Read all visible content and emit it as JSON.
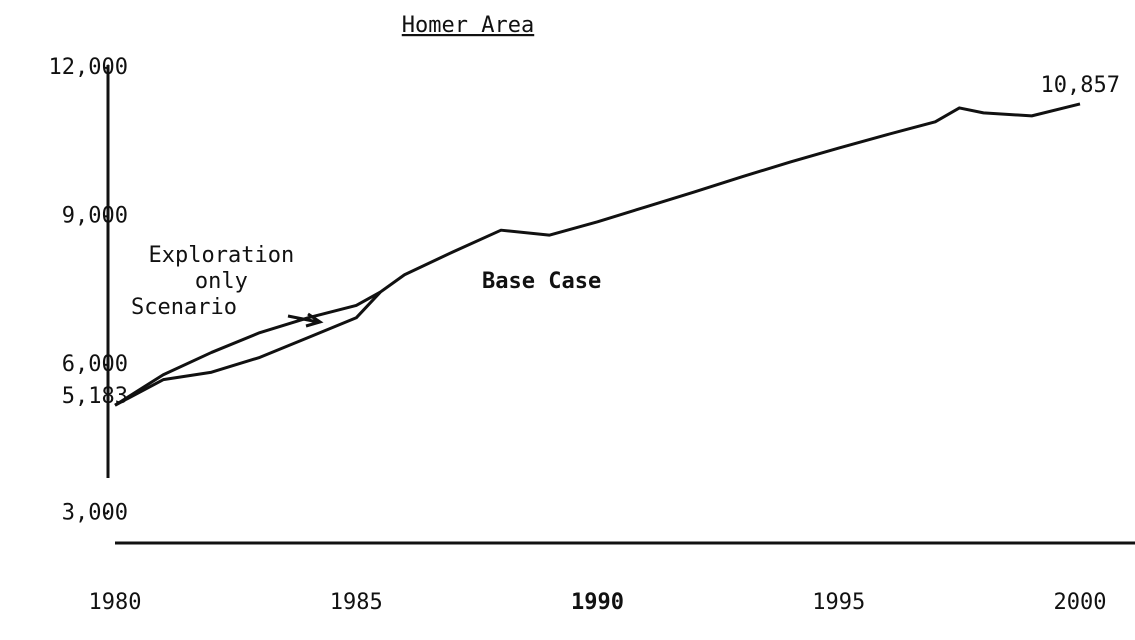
{
  "chart_data": {
    "type": "line",
    "title": "Homer Area",
    "x": [
      1980,
      1981,
      1982,
      1983,
      1984,
      1985,
      1985.5,
      1986,
      1987,
      1988,
      1989,
      1990,
      1991,
      1992,
      1993,
      1994,
      1995,
      1996,
      1997,
      1997.5,
      1998,
      1999,
      2000
    ],
    "series": [
      {
        "name": "Base Case",
        "color": "#111111",
        "values": [
          5183,
          5700,
          5850,
          6150,
          6550,
          6950,
          7470,
          7820,
          8280,
          8720,
          8620,
          8890,
          9190,
          9490,
          9800,
          10100,
          10380,
          10650,
          10910,
          11190,
          11090,
          11030,
          11270
        ]
      },
      {
        "name": "Exploration only Scenario",
        "color": "#111111",
        "values": [
          5183,
          5800,
          6250,
          6650,
          6950,
          7200,
          7470,
          null,
          null,
          null,
          null,
          null,
          null,
          null,
          null,
          null,
          null,
          null,
          null,
          null,
          null,
          null,
          null
        ]
      }
    ],
    "xlim": [
      1980,
      2000
    ],
    "xticks": [
      1980,
      1985,
      1990,
      1995,
      2000
    ],
    "ylim": [
      2400,
      12300
    ],
    "yticks": [
      {
        "value": 3000,
        "label": "3,000"
      },
      {
        "value": 6000,
        "label": "6,000"
      },
      {
        "value": 9000,
        "label": "9,000"
      },
      {
        "value": 12000,
        "label": "12,000"
      }
    ],
    "annotations": [
      "5,183",
      "10,857"
    ],
    "grid": false
  }
}
